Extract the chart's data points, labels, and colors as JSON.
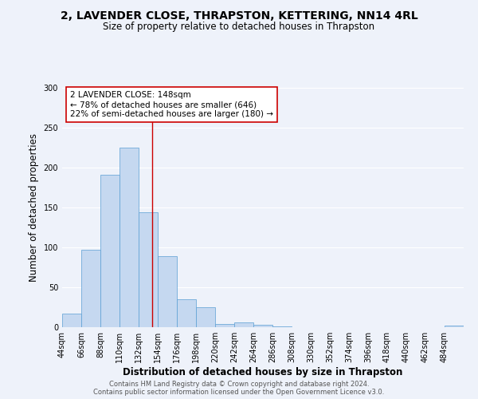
{
  "title": "2, LAVENDER CLOSE, THRAPSTON, KETTERING, NN14 4RL",
  "subtitle": "Size of property relative to detached houses in Thrapston",
  "xlabel": "Distribution of detached houses by size in Thrapston",
  "ylabel": "Number of detached properties",
  "bar_color": "#c5d8f0",
  "bar_edge_color": "#5a9fd4",
  "bin_edges": [
    44,
    66,
    88,
    110,
    132,
    154,
    176,
    198,
    220,
    242,
    264,
    286,
    308,
    330,
    352,
    374,
    396,
    418,
    440,
    462,
    484,
    506
  ],
  "bar_heights": [
    17,
    97,
    191,
    225,
    144,
    89,
    35,
    25,
    4,
    6,
    3,
    1,
    0,
    0,
    0,
    0,
    0,
    0,
    0,
    0,
    2
  ],
  "property_size": 148,
  "vline_color": "#cc0000",
  "ylim": [
    0,
    300
  ],
  "yticks": [
    0,
    50,
    100,
    150,
    200,
    250,
    300
  ],
  "annotation_title": "2 LAVENDER CLOSE: 148sqm",
  "annotation_line1": "← 78% of detached houses are smaller (646)",
  "annotation_line2": "22% of semi-detached houses are larger (180) →",
  "annotation_box_color": "#ffffff",
  "annotation_box_edge": "#cc0000",
  "footer1": "Contains HM Land Registry data © Crown copyright and database right 2024.",
  "footer2": "Contains public sector information licensed under the Open Government Licence v3.0.",
  "background_color": "#eef2fa",
  "grid_color": "#ffffff",
  "title_fontsize": 10,
  "subtitle_fontsize": 8.5,
  "axis_label_fontsize": 8.5,
  "tick_label_fontsize": 7,
  "annotation_fontsize": 7.5,
  "footer_fontsize": 6
}
